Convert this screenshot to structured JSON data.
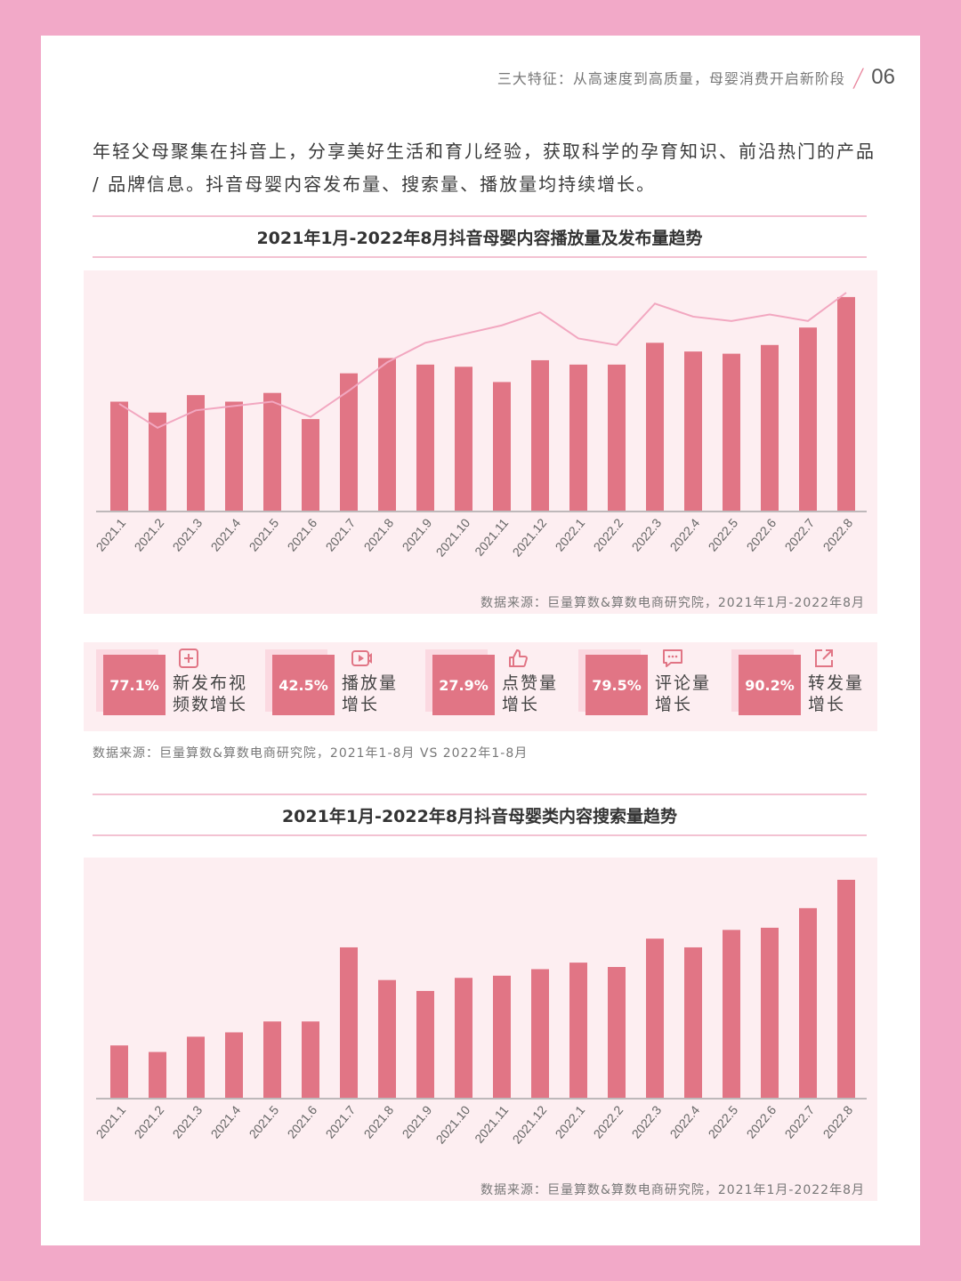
{
  "header": {
    "text": "三大特征：从高速度到高质量，母婴消费开启新阶段",
    "page_number": "06"
  },
  "intro": "年轻父母聚集在抖音上，分享美好生活和育儿经验，获取科学的孕育知识、前沿热门的产品 / 品牌信息。抖音母婴内容发布量、搜索量、播放量均持续增长。",
  "colors": {
    "bar": "#e17585",
    "line": "#f2a7c0",
    "background": "#fdeef1",
    "frame": "#f2a9c8"
  },
  "section1": {
    "title": "2021年1月-2022年8月抖音母婴内容播放量及发布量趋势",
    "source": "数据来源：巨量算数&算数电商研究院，2021年1月-2022年8月"
  },
  "stats": {
    "items": [
      {
        "value": "77.1%",
        "label": "新发布视\n频数增长",
        "icon": "plus-square-icon"
      },
      {
        "value": "42.5%",
        "label": "播放量\n增长",
        "icon": "video-play-icon"
      },
      {
        "value": "27.9%",
        "label": "点赞量\n增长",
        "icon": "thumbs-up-icon"
      },
      {
        "value": "79.5%",
        "label": "评论量\n增长",
        "icon": "comment-icon"
      },
      {
        "value": "90.2%",
        "label": "转发量\n增长",
        "icon": "share-icon"
      }
    ],
    "source": "数据来源：巨量算数&算数电商研究院，2021年1-8月 VS 2022年1-8月"
  },
  "section2": {
    "title": "2021年1月-2022年8月抖音母婴类内容搜索量趋势",
    "source": "数据来源：巨量算数&算数电商研究院，2021年1月-2022年8月"
  },
  "chart_data": [
    {
      "type": "bar",
      "categories": [
        "2021.1",
        "2021.2",
        "2021.3",
        "2021.4",
        "2021.5",
        "2021.6",
        "2021.7",
        "2021.8",
        "2021.9",
        "2021.10",
        "2021.11",
        "2021.12",
        "2022.1",
        "2022.2",
        "2022.3",
        "2022.4",
        "2022.5",
        "2022.6",
        "2022.7",
        "2022.8"
      ],
      "series": [
        {
          "values": [
            50,
            45,
            53,
            50,
            54,
            42,
            63,
            70,
            67,
            66,
            59,
            69,
            67,
            67,
            77,
            73,
            72,
            76,
            84,
            98
          ]
        },
        {
          "values": [
            49,
            38,
            46,
            48,
            50,
            43,
            55,
            68,
            77,
            81,
            85,
            91,
            79,
            76,
            95,
            89,
            87,
            90,
            87,
            100
          ]
        }
      ],
      "ylim": [
        0,
        100
      ],
      "grid": false,
      "legend": "none"
    },
    {
      "type": "bar",
      "categories": [
        "2021.1",
        "2021.2",
        "2021.3",
        "2021.4",
        "2021.5",
        "2021.6",
        "2021.7",
        "2021.8",
        "2021.9",
        "2021.10",
        "2021.11",
        "2021.12",
        "2022.1",
        "2022.2",
        "2022.3",
        "2022.4",
        "2022.5",
        "2022.6",
        "2022.7",
        "2022.8"
      ],
      "values": [
        24,
        21,
        28,
        30,
        35,
        35,
        69,
        54,
        49,
        55,
        56,
        59,
        62,
        60,
        73,
        69,
        77,
        78,
        87,
        100
      ],
      "ylim": [
        0,
        100
      ],
      "grid": false,
      "legend": "none"
    }
  ]
}
